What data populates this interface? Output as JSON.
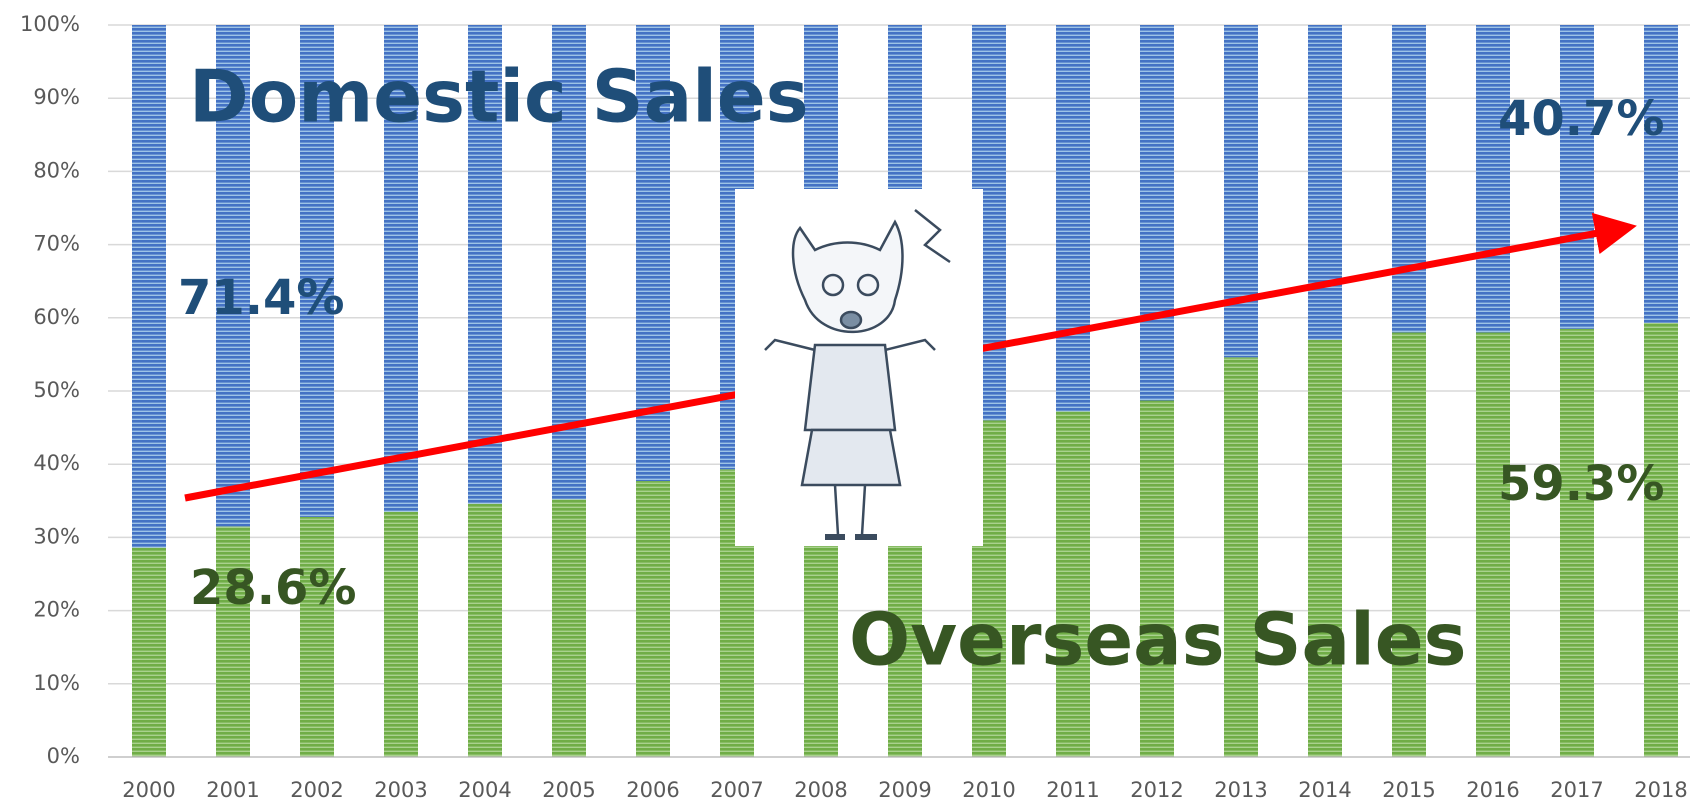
{
  "chart_data": {
    "type": "stacked_bar_100",
    "categories": [
      "2000",
      "2001",
      "2002",
      "2003",
      "2004",
      "2005",
      "2006",
      "2007",
      "2008",
      "2009",
      "2010",
      "2011",
      "2012",
      "2013",
      "2014",
      "2015",
      "2016",
      "2017",
      "2018"
    ],
    "series": [
      {
        "name": "Overseas Sales",
        "color": "#70ad47",
        "label_color": "#375623",
        "values": [
          28.6,
          31.5,
          32.8,
          33.5,
          34.6,
          35.2,
          37.7,
          39.3,
          41.5,
          44.0,
          46.0,
          47.2,
          48.7,
          54.6,
          57.0,
          58.0,
          58.0,
          58.5,
          59.3
        ],
        "value_labels": [
          "28.6%",
          null,
          null,
          null,
          null,
          null,
          null,
          null,
          null,
          null,
          null,
          null,
          null,
          null,
          null,
          null,
          null,
          null,
          "59.3%"
        ]
      },
      {
        "name": "Domestic Sales",
        "color": "#4472c4",
        "label_color": "#1f4e79",
        "values": [
          71.4,
          68.5,
          67.2,
          66.5,
          65.4,
          64.8,
          62.3,
          60.7,
          58.5,
          56.0,
          54.0,
          52.8,
          51.3,
          45.4,
          43.0,
          42.0,
          42.0,
          41.5,
          40.7
        ],
        "value_labels": [
          "71.4%",
          null,
          null,
          null,
          null,
          null,
          null,
          null,
          null,
          null,
          null,
          null,
          null,
          null,
          null,
          null,
          null,
          null,
          "40.7%"
        ]
      }
    ],
    "ylim": [
      0,
      100
    ],
    "yticks": [
      {
        "value": 0,
        "label": "0%"
      },
      {
        "value": 10,
        "label": "10%"
      },
      {
        "value": 20,
        "label": "20%"
      },
      {
        "value": 30,
        "label": "30%"
      },
      {
        "value": 40,
        "label": "40%"
      },
      {
        "value": 50,
        "label": "50%"
      },
      {
        "value": 60,
        "label": "60%"
      },
      {
        "value": 70,
        "label": "70%"
      },
      {
        "value": 80,
        "label": "80%"
      },
      {
        "value": 90,
        "label": "90%"
      },
      {
        "value": 100,
        "label": "100%"
      }
    ],
    "grid": true
  }
}
